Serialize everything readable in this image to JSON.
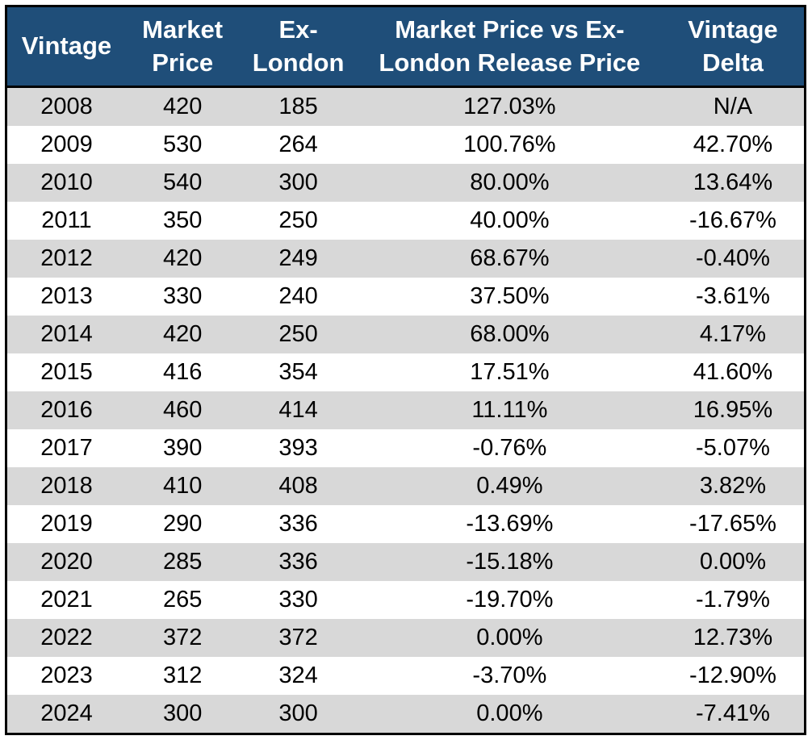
{
  "table": {
    "columns": [
      [
        "Vintage"
      ],
      [
        "Market",
        "Price"
      ],
      [
        "Ex-",
        "London"
      ],
      [
        "Market Price vs Ex-",
        "London Release Price"
      ],
      [
        "Vintage",
        "Delta"
      ]
    ],
    "rows": [
      [
        "2008",
        "420",
        "185",
        "127.03%",
        "N/A"
      ],
      [
        "2009",
        "530",
        "264",
        "100.76%",
        "42.70%"
      ],
      [
        "2010",
        "540",
        "300",
        "80.00%",
        "13.64%"
      ],
      [
        "2011",
        "350",
        "250",
        "40.00%",
        "-16.67%"
      ],
      [
        "2012",
        "420",
        "249",
        "68.67%",
        "-0.40%"
      ],
      [
        "2013",
        "330",
        "240",
        "37.50%",
        "-3.61%"
      ],
      [
        "2014",
        "420",
        "250",
        "68.00%",
        "4.17%"
      ],
      [
        "2015",
        "416",
        "354",
        "17.51%",
        "41.60%"
      ],
      [
        "2016",
        "460",
        "414",
        "11.11%",
        "16.95%"
      ],
      [
        "2017",
        "390",
        "393",
        "-0.76%",
        "-5.07%"
      ],
      [
        "2018",
        "410",
        "408",
        "0.49%",
        "3.82%"
      ],
      [
        "2019",
        "290",
        "336",
        "-13.69%",
        "-17.65%"
      ],
      [
        "2020",
        "285",
        "336",
        "-15.18%",
        "0.00%"
      ],
      [
        "2021",
        "265",
        "330",
        "-19.70%",
        "-1.79%"
      ],
      [
        "2022",
        "372",
        "372",
        "0.00%",
        "12.73%"
      ],
      [
        "2023",
        "312",
        "324",
        "-3.70%",
        "-12.90%"
      ],
      [
        "2024",
        "300",
        "300",
        "0.00%",
        "-7.41%"
      ]
    ]
  },
  "colors": {
    "header_bg": "#1f4e79",
    "header_text": "#ffffff",
    "band_row": "#d8d8d8",
    "plain_row": "#ffffff",
    "border": "#000000"
  },
  "chart_data": {
    "type": "table",
    "columns": [
      "Vintage",
      "Market Price",
      "Ex-London",
      "Market Price vs Ex-London Release Price",
      "Vintage Delta"
    ],
    "rows": [
      [
        "2008",
        420,
        185,
        "127.03%",
        "N/A"
      ],
      [
        "2009",
        530,
        264,
        "100.76%",
        "42.70%"
      ],
      [
        "2010",
        540,
        300,
        "80.00%",
        "13.64%"
      ],
      [
        "2011",
        350,
        250,
        "40.00%",
        "-16.67%"
      ],
      [
        "2012",
        420,
        249,
        "68.67%",
        "-0.40%"
      ],
      [
        "2013",
        330,
        240,
        "37.50%",
        "-3.61%"
      ],
      [
        "2014",
        420,
        250,
        "68.00%",
        "4.17%"
      ],
      [
        "2015",
        416,
        354,
        "17.51%",
        "41.60%"
      ],
      [
        "2016",
        460,
        414,
        "11.11%",
        "16.95%"
      ],
      [
        "2017",
        390,
        393,
        "-0.76%",
        "-5.07%"
      ],
      [
        "2018",
        410,
        408,
        "0.49%",
        "3.82%"
      ],
      [
        "2019",
        290,
        336,
        "-13.69%",
        "-17.65%"
      ],
      [
        "2020",
        285,
        336,
        "-15.18%",
        "0.00%"
      ],
      [
        "2021",
        265,
        330,
        "-19.70%",
        "-1.79%"
      ],
      [
        "2022",
        372,
        372,
        "0.00%",
        "12.73%"
      ],
      [
        "2023",
        312,
        324,
        "-3.70%",
        "-12.90%"
      ],
      [
        "2024",
        300,
        300,
        "0.00%",
        "-7.41%"
      ]
    ]
  }
}
